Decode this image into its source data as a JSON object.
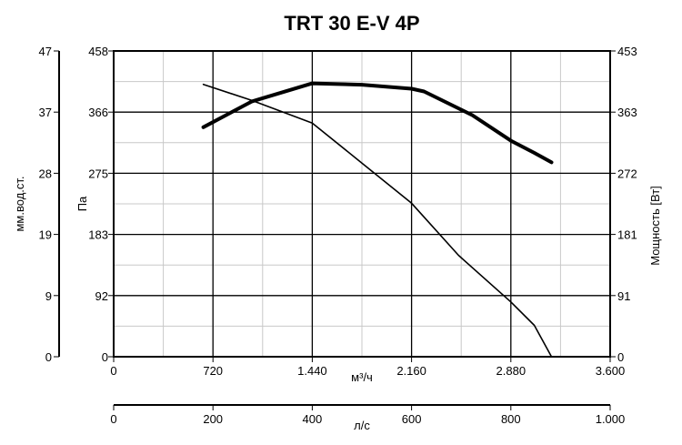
{
  "chart_data": {
    "type": "line",
    "title": "TRT 30 E-V 4P",
    "grid": true,
    "x_axis_m3h": {
      "label": "м³/ч",
      "range": [
        0,
        3600
      ],
      "major_ticks": [
        "0",
        "720",
        "1.440",
        "2.160",
        "2.880",
        "3.600"
      ],
      "minor_step": 360
    },
    "x_axis_ls": {
      "label": "л/с",
      "range": [
        0,
        1000
      ],
      "ticks": [
        "0",
        "200",
        "400",
        "600",
        "800",
        "1.000"
      ]
    },
    "y_axis_pa": {
      "label": "Па",
      "range": [
        0,
        458
      ],
      "ticks": [
        "0",
        "92",
        "183",
        "275",
        "366",
        "458"
      ]
    },
    "y_axis_mm": {
      "label": "мм.вод.ст.",
      "ticks": [
        "0",
        "9",
        "19",
        "28",
        "37",
        "47"
      ]
    },
    "y_axis_power": {
      "label": "Мощность [Вт]",
      "range": [
        0,
        453
      ],
      "ticks": [
        "0",
        "91",
        "181",
        "272",
        "363",
        "453"
      ]
    },
    "series": [
      {
        "role": "pressure",
        "axis": "Pa",
        "x": [
          650,
          1000,
          1440,
          1800,
          2160,
          2500,
          2880,
          3050,
          3175
        ],
        "y": [
          408,
          384,
          350,
          290,
          230,
          152,
          82,
          47,
          0
        ]
      },
      {
        "role": "power",
        "axis": "W",
        "x": [
          650,
          1000,
          1440,
          1800,
          2160,
          2250,
          2600,
          2880,
          3050,
          3175
        ],
        "y": [
          340,
          378,
          405,
          403,
          397,
          393,
          358,
          320,
          302,
          288
        ]
      }
    ]
  }
}
